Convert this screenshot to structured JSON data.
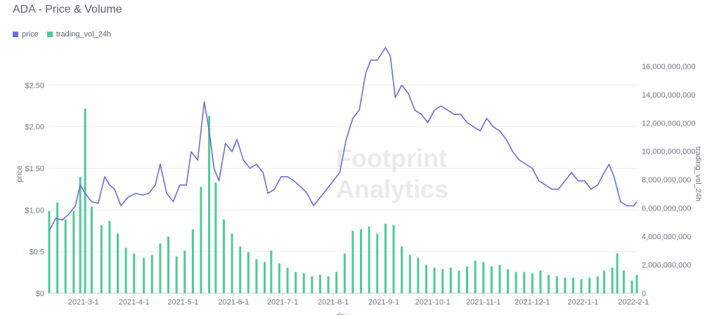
{
  "header": {
    "title": "ADA - Price & Volume"
  },
  "legend": [
    {
      "label": "price",
      "color": "#6b6fd4"
    },
    {
      "label": "trading_vol_24h",
      "color": "#4fc99a"
    }
  ],
  "watermark": {
    "line1": "Footprint",
    "line2": "Analytics"
  },
  "chart_data": {
    "type": "bar+line",
    "x_axis": {
      "title": "day",
      "start": "2021-02-08",
      "end": "2022-02-03",
      "ticks": [
        "2021-3-1",
        "2021-4-1",
        "2021-5-1",
        "2021-6-1",
        "2021-7-1",
        "2021-8-1",
        "2021-9-1",
        "2021-10-1",
        "2021-11-1",
        "2021-12-1",
        "2022-1-1",
        "2022-2-1"
      ]
    },
    "y_left": {
      "title": "price",
      "min": 0,
      "max": 3.0,
      "ticks": [
        0,
        0.5,
        1.0,
        1.5,
        2.0,
        2.5
      ],
      "tick_labels": [
        "$0",
        "$0.5",
        "$1.00",
        "$1.50",
        "$2.00",
        "$2.50"
      ]
    },
    "y_right": {
      "title": "trading_vol_24h",
      "min": 0,
      "max": 17600000000,
      "ticks": [
        0,
        2000000000,
        4000000000,
        6000000000,
        8000000000,
        10000000000,
        12000000000,
        14000000000,
        16000000000
      ],
      "tick_labels": [
        "0",
        "2,000,000,000",
        "4,000,000,000",
        "6,000,000,000",
        "8,000,000,000",
        "10,000,000,000",
        "12,000,000,000",
        "14,000,000,000",
        "16,000,000,000"
      ]
    },
    "grid": true,
    "legend_position": "top-left",
    "series": [
      {
        "name": "price",
        "axis": "left",
        "type": "line",
        "color": "#6b6fd4",
        "points": [
          [
            "2021-02-08",
            0.75
          ],
          [
            "2021-02-12",
            0.9
          ],
          [
            "2021-02-16",
            0.88
          ],
          [
            "2021-02-20",
            0.95
          ],
          [
            "2021-02-24",
            1.05
          ],
          [
            "2021-02-27",
            1.3
          ],
          [
            "2021-03-02",
            1.2
          ],
          [
            "2021-03-06",
            1.1
          ],
          [
            "2021-03-10",
            1.08
          ],
          [
            "2021-03-14",
            1.4
          ],
          [
            "2021-03-17",
            1.3
          ],
          [
            "2021-03-20",
            1.25
          ],
          [
            "2021-03-24",
            1.05
          ],
          [
            "2021-03-28",
            1.15
          ],
          [
            "2021-04-02",
            1.2
          ],
          [
            "2021-04-06",
            1.18
          ],
          [
            "2021-04-10",
            1.2
          ],
          [
            "2021-04-14",
            1.3
          ],
          [
            "2021-04-17",
            1.55
          ],
          [
            "2021-04-21",
            1.2
          ],
          [
            "2021-04-25",
            1.1
          ],
          [
            "2021-04-29",
            1.3
          ],
          [
            "2021-05-03",
            1.3
          ],
          [
            "2021-05-06",
            1.7
          ],
          [
            "2021-05-10",
            1.6
          ],
          [
            "2021-05-14",
            2.3
          ],
          [
            "2021-05-17",
            1.95
          ],
          [
            "2021-05-20",
            1.5
          ],
          [
            "2021-05-23",
            1.35
          ],
          [
            "2021-05-27",
            1.8
          ],
          [
            "2021-05-31",
            1.7
          ],
          [
            "2021-06-03",
            1.85
          ],
          [
            "2021-06-07",
            1.6
          ],
          [
            "2021-06-11",
            1.5
          ],
          [
            "2021-06-15",
            1.55
          ],
          [
            "2021-06-19",
            1.45
          ],
          [
            "2021-06-22",
            1.2
          ],
          [
            "2021-06-26",
            1.25
          ],
          [
            "2021-06-30",
            1.4
          ],
          [
            "2021-07-04",
            1.4
          ],
          [
            "2021-07-08",
            1.35
          ],
          [
            "2021-07-12",
            1.28
          ],
          [
            "2021-07-16",
            1.2
          ],
          [
            "2021-07-20",
            1.05
          ],
          [
            "2021-07-24",
            1.15
          ],
          [
            "2021-07-28",
            1.25
          ],
          [
            "2021-08-01",
            1.35
          ],
          [
            "2021-08-05",
            1.45
          ],
          [
            "2021-08-09",
            1.85
          ],
          [
            "2021-08-13",
            2.1
          ],
          [
            "2021-08-17",
            2.2
          ],
          [
            "2021-08-21",
            2.65
          ],
          [
            "2021-08-24",
            2.8
          ],
          [
            "2021-08-28",
            2.8
          ],
          [
            "2021-09-02",
            2.95
          ],
          [
            "2021-09-05",
            2.85
          ],
          [
            "2021-09-08",
            2.35
          ],
          [
            "2021-09-12",
            2.5
          ],
          [
            "2021-09-16",
            2.4
          ],
          [
            "2021-09-20",
            2.2
          ],
          [
            "2021-09-24",
            2.15
          ],
          [
            "2021-09-28",
            2.05
          ],
          [
            "2021-10-02",
            2.2
          ],
          [
            "2021-10-06",
            2.25
          ],
          [
            "2021-10-10",
            2.2
          ],
          [
            "2021-10-14",
            2.15
          ],
          [
            "2021-10-18",
            2.15
          ],
          [
            "2021-10-22",
            2.05
          ],
          [
            "2021-10-26",
            2.0
          ],
          [
            "2021-10-30",
            1.95
          ],
          [
            "2021-11-03",
            2.1
          ],
          [
            "2021-11-07",
            2.0
          ],
          [
            "2021-11-11",
            1.95
          ],
          [
            "2021-11-15",
            1.85
          ],
          [
            "2021-11-19",
            1.7
          ],
          [
            "2021-11-23",
            1.6
          ],
          [
            "2021-11-27",
            1.55
          ],
          [
            "2021-12-01",
            1.5
          ],
          [
            "2021-12-05",
            1.35
          ],
          [
            "2021-12-09",
            1.3
          ],
          [
            "2021-12-13",
            1.25
          ],
          [
            "2021-12-17",
            1.25
          ],
          [
            "2021-12-21",
            1.35
          ],
          [
            "2021-12-25",
            1.45
          ],
          [
            "2021-12-29",
            1.35
          ],
          [
            "2022-01-02",
            1.35
          ],
          [
            "2022-01-06",
            1.25
          ],
          [
            "2022-01-10",
            1.3
          ],
          [
            "2022-01-14",
            1.45
          ],
          [
            "2022-01-17",
            1.55
          ],
          [
            "2022-01-20",
            1.4
          ],
          [
            "2022-01-24",
            1.1
          ],
          [
            "2022-01-28",
            1.05
          ],
          [
            "2022-02-01",
            1.05
          ],
          [
            "2022-02-03",
            1.1
          ]
        ]
      },
      {
        "name": "trading_vol_24h",
        "axis": "right",
        "type": "bar",
        "color": "#4fc99a",
        "points": [
          [
            "2021-02-08",
            5800000000
          ],
          [
            "2021-02-13",
            6400000000
          ],
          [
            "2021-02-18",
            5200000000
          ],
          [
            "2021-02-23",
            5800000000
          ],
          [
            "2021-02-27",
            8200000000
          ],
          [
            "2021-03-02",
            13000000000
          ],
          [
            "2021-03-06",
            6100000000
          ],
          [
            "2021-03-12",
            4800000000
          ],
          [
            "2021-03-17",
            5100000000
          ],
          [
            "2021-03-22",
            4200000000
          ],
          [
            "2021-03-27",
            3200000000
          ],
          [
            "2021-04-01",
            2800000000
          ],
          [
            "2021-04-07",
            2500000000
          ],
          [
            "2021-04-12",
            2700000000
          ],
          [
            "2021-04-17",
            3500000000
          ],
          [
            "2021-04-22",
            4000000000
          ],
          [
            "2021-04-27",
            2600000000
          ],
          [
            "2021-05-02",
            3000000000
          ],
          [
            "2021-05-07",
            4500000000
          ],
          [
            "2021-05-12",
            7500000000
          ],
          [
            "2021-05-17",
            12500000000
          ],
          [
            "2021-05-21",
            7800000000
          ],
          [
            "2021-05-26",
            5200000000
          ],
          [
            "2021-05-31",
            4200000000
          ],
          [
            "2021-06-05",
            3300000000
          ],
          [
            "2021-06-10",
            2900000000
          ],
          [
            "2021-06-15",
            2400000000
          ],
          [
            "2021-06-20",
            2200000000
          ],
          [
            "2021-06-24",
            3000000000
          ],
          [
            "2021-06-29",
            2100000000
          ],
          [
            "2021-07-04",
            1800000000
          ],
          [
            "2021-07-09",
            1500000000
          ],
          [
            "2021-07-14",
            1400000000
          ],
          [
            "2021-07-19",
            1200000000
          ],
          [
            "2021-07-24",
            1300000000
          ],
          [
            "2021-07-29",
            1200000000
          ],
          [
            "2021-08-03",
            1500000000
          ],
          [
            "2021-08-08",
            2800000000
          ],
          [
            "2021-08-13",
            4400000000
          ],
          [
            "2021-08-18",
            4500000000
          ],
          [
            "2021-08-23",
            4700000000
          ],
          [
            "2021-08-28",
            4200000000
          ],
          [
            "2021-09-02",
            4900000000
          ],
          [
            "2021-09-07",
            4800000000
          ],
          [
            "2021-09-12",
            3300000000
          ],
          [
            "2021-09-17",
            2700000000
          ],
          [
            "2021-09-22",
            2500000000
          ],
          [
            "2021-09-27",
            2000000000
          ],
          [
            "2021-10-02",
            1800000000
          ],
          [
            "2021-10-07",
            1700000000
          ],
          [
            "2021-10-12",
            1800000000
          ],
          [
            "2021-10-17",
            1600000000
          ],
          [
            "2021-10-22",
            1900000000
          ],
          [
            "2021-10-27",
            2300000000
          ],
          [
            "2021-11-01",
            2200000000
          ],
          [
            "2021-11-06",
            1900000000
          ],
          [
            "2021-11-11",
            2000000000
          ],
          [
            "2021-11-16",
            1700000000
          ],
          [
            "2021-11-21",
            1500000000
          ],
          [
            "2021-11-26",
            1500000000
          ],
          [
            "2021-12-01",
            1400000000
          ],
          [
            "2021-12-06",
            1600000000
          ],
          [
            "2021-12-11",
            1300000000
          ],
          [
            "2021-12-16",
            1200000000
          ],
          [
            "2021-12-21",
            1100000000
          ],
          [
            "2021-12-26",
            1100000000
          ],
          [
            "2021-12-31",
            1000000000
          ],
          [
            "2022-01-05",
            1100000000
          ],
          [
            "2022-01-10",
            1200000000
          ],
          [
            "2022-01-14",
            1600000000
          ],
          [
            "2022-01-19",
            1800000000
          ],
          [
            "2022-01-22",
            2800000000
          ],
          [
            "2022-01-26",
            1600000000
          ],
          [
            "2022-01-31",
            900000000
          ],
          [
            "2022-02-03",
            1300000000
          ]
        ]
      }
    ]
  }
}
